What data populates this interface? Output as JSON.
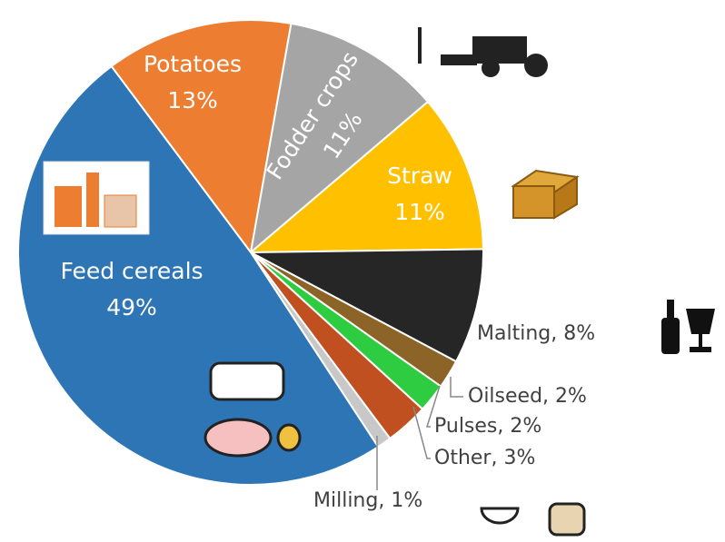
{
  "chart_data": {
    "type": "pie",
    "categories": [
      "Potatoes",
      "Fodder crops",
      "Straw",
      "Malting",
      "Oilseed",
      "Pulses",
      "Other",
      "Milling",
      "Feed cereals"
    ],
    "values": [
      13,
      11,
      11,
      8,
      2,
      2,
      3,
      1,
      49
    ],
    "value_labels": [
      "13%",
      "11%",
      "11%",
      "8%",
      "2%",
      "2%",
      "3%",
      "1%",
      "49%"
    ],
    "colors": [
      "#ed7d31",
      "#a5a5a5",
      "#ffc000",
      "#262626",
      "#8c6428",
      "#2ecc40",
      "#c0501f",
      "#c8c8c8",
      "#2e75b6"
    ],
    "label_separator": ", "
  }
}
